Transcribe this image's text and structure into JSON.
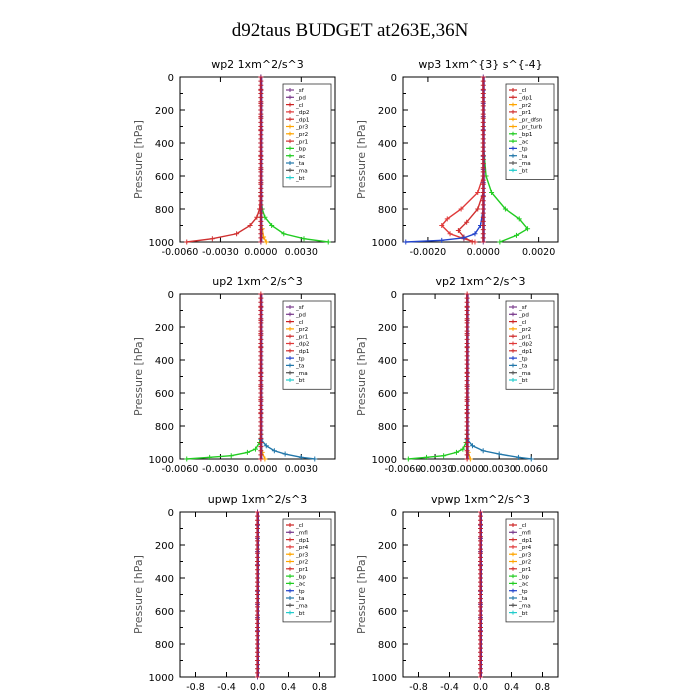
{
  "figure": {
    "title": "d92taus  BUDGET at263E,36N"
  },
  "chart_data": [
    {
      "type": "line",
      "title": "wp2   1xm^2/s^3",
      "ylabel": "Pressure [hPa]",
      "xlim": [
        -0.006,
        0.0055
      ],
      "ylim": [
        1000,
        0
      ],
      "xticks": [
        -0.006,
        -0.003,
        0.0,
        0.003
      ],
      "xtick_labels": [
        "-0.0060",
        "-0.0030",
        "0.0000",
        "0.0030"
      ],
      "yticks": [
        0,
        200,
        400,
        600,
        800,
        1000
      ],
      "legend": [
        "_sf",
        "_pd",
        "_cl",
        "_dp2",
        "_dp1",
        "_pr3",
        "_pr2",
        "_pr1",
        "_bp",
        "_ac",
        "_ta",
        "_ma",
        "_bt"
      ],
      "series": [
        {
          "name": "_pr1",
          "color": "#d03030",
          "marker": "+",
          "x": [
            0,
            -0.0001,
            -0.0003,
            -0.0008,
            -0.0018,
            -0.0036,
            -0.0055
          ],
          "y": [
            700,
            800,
            850,
            900,
            950,
            980,
            1000
          ]
        },
        {
          "name": "_bp",
          "color": "#22cc22",
          "marker": "+",
          "x": [
            0,
            0.0001,
            0.0003,
            0.0008,
            0.0017,
            0.0032,
            0.005
          ],
          "y": [
            700,
            800,
            850,
            900,
            950,
            980,
            1000
          ]
        },
        {
          "name": "_cl",
          "color": "#cc2222",
          "marker": "+",
          "x": [
            0,
            0,
            0,
            0,
            0,
            0,
            0,
            0,
            0,
            0,
            0,
            0,
            0
          ],
          "y": [
            0,
            80,
            160,
            240,
            320,
            400,
            480,
            560,
            640,
            720,
            800,
            900,
            1000
          ]
        },
        {
          "name": "_sf",
          "color": "#7a3b8c",
          "marker": "+",
          "x": [
            0,
            0,
            0,
            0,
            0,
            0
          ],
          "y": [
            0,
            200,
            400,
            600,
            800,
            1000
          ]
        },
        {
          "name": "_pr3",
          "color": "#ffa500",
          "marker": "+",
          "x": [
            0,
            0.0001,
            0.0002,
            0.0004
          ],
          "y": [
            850,
            920,
            970,
            1000
          ]
        }
      ]
    },
    {
      "type": "line",
      "title": "wp3   1xm^{3} s^{-4}",
      "ylabel": "Pressure [hPa]",
      "xlim": [
        -0.0029,
        0.0027
      ],
      "ylim": [
        1000,
        0
      ],
      "xticks": [
        -0.002,
        0.0,
        0.002
      ],
      "xtick_labels": [
        "-0.0020",
        "0.0000",
        "0.0020"
      ],
      "yticks": [
        0,
        200,
        400,
        600,
        800,
        1000
      ],
      "legend": [
        "_cl",
        "_dp1",
        "_pr2",
        "_pr1",
        "_pr_dfsn",
        "_pr_turb",
        "_bp1",
        "_ac",
        "_tp",
        "_ta",
        "_ma",
        "_bt"
      ],
      "series": [
        {
          "name": "_pr1",
          "color": "#e03a3a",
          "marker": "+",
          "x": [
            0,
            -0.0002,
            -0.0008,
            -0.0013,
            -0.0015,
            -0.0012,
            -0.0007,
            -0.0003
          ],
          "y": [
            600,
            700,
            800,
            860,
            900,
            950,
            980,
            1000
          ]
        },
        {
          "name": "_bp1",
          "color": "#22cc22",
          "marker": "+",
          "x": [
            0,
            0.0001,
            0.0003,
            0.0008,
            0.0013,
            0.0016,
            0.0012,
            0.0006
          ],
          "y": [
            400,
            600,
            700,
            800,
            860,
            920,
            960,
            1000
          ]
        },
        {
          "name": "_pr2",
          "color": "#d03030",
          "marker": "+",
          "x": [
            0,
            -0.0002,
            -0.0006,
            -0.0009,
            -0.0007,
            -0.0004
          ],
          "y": [
            700,
            800,
            880,
            930,
            970,
            1000
          ]
        },
        {
          "name": "_tp",
          "color": "#2244cc",
          "marker": "+",
          "x": [
            0,
            -0.0001,
            -0.0003,
            -0.0007,
            -0.0015,
            -0.0028
          ],
          "y": [
            800,
            900,
            950,
            975,
            990,
            1000
          ]
        },
        {
          "name": "_cl",
          "color": "#7a3b8c",
          "marker": "+",
          "x": [
            0,
            0,
            0,
            0,
            0,
            0,
            0,
            0,
            0,
            0,
            0,
            0,
            0
          ],
          "y": [
            0,
            80,
            160,
            240,
            320,
            400,
            480,
            560,
            640,
            720,
            800,
            900,
            1000
          ]
        }
      ]
    },
    {
      "type": "line",
      "title": "up2   1xm^2/s^3",
      "ylabel": "Pressure [hPa]",
      "xlim": [
        -0.006,
        0.0055
      ],
      "ylim": [
        1000,
        0
      ],
      "xticks": [
        -0.006,
        -0.003,
        0.0,
        0.003
      ],
      "xtick_labels": [
        "-0.0060",
        "-0.0030",
        "0.0000",
        "0.0030"
      ],
      "yticks": [
        0,
        200,
        400,
        600,
        800,
        1000
      ],
      "legend": [
        "_sf",
        "_pd",
        "_cl",
        "_pr2",
        "_pr1",
        "_dp2",
        "_dp1",
        "_tp",
        "_ta",
        "_ma",
        "_bt"
      ],
      "series": [
        {
          "name": "_dp1",
          "color": "#22cc22",
          "marker": "+",
          "x": [
            0,
            -0.0001,
            -0.0004,
            -0.001,
            -0.0022,
            -0.0038,
            -0.0055
          ],
          "y": [
            850,
            900,
            940,
            960,
            980,
            990,
            1000
          ]
        },
        {
          "name": "_tp",
          "color": "#2277aa",
          "marker": "+",
          "x": [
            0,
            0.0004,
            0.001,
            0.0018,
            0.003,
            0.004
          ],
          "y": [
            880,
            920,
            950,
            970,
            990,
            1000
          ]
        },
        {
          "name": "_cl",
          "color": "#cc2222",
          "marker": "+",
          "x": [
            0,
            0,
            0,
            0,
            0,
            0,
            0,
            0,
            0,
            0,
            0,
            0,
            0
          ],
          "y": [
            0,
            80,
            160,
            240,
            320,
            400,
            480,
            560,
            640,
            720,
            800,
            900,
            1000
          ]
        },
        {
          "name": "_pr1",
          "color": "#ffa500",
          "marker": "+",
          "x": [
            0,
            0.0001,
            0.0003
          ],
          "y": [
            900,
            960,
            1000
          ]
        }
      ]
    },
    {
      "type": "line",
      "title": "vp2   1xm^2/s^3",
      "ylabel": "Pressure [hPa]",
      "xlim": [
        -0.006,
        0.0085
      ],
      "ylim": [
        1000,
        0
      ],
      "xticks": [
        -0.006,
        -0.003,
        0.0,
        0.003,
        0.006
      ],
      "xtick_labels": [
        "-0.0060",
        "-0.0030",
        "0.0000",
        "0.0030",
        "0.0060"
      ],
      "yticks": [
        0,
        200,
        400,
        600,
        800,
        1000
      ],
      "legend": [
        "_sf",
        "_pd",
        "_cl",
        "_pr2",
        "_pr1",
        "_dp2",
        "_dp1",
        "_tp",
        "_ta",
        "_ma",
        "_bt"
      ],
      "series": [
        {
          "name": "_dp1",
          "color": "#22cc22",
          "marker": "+",
          "x": [
            0,
            -0.0001,
            -0.0004,
            -0.001,
            -0.0022,
            -0.0038,
            -0.0055
          ],
          "y": [
            850,
            900,
            940,
            960,
            980,
            990,
            1000
          ]
        },
        {
          "name": "_tp",
          "color": "#2277aa",
          "marker": "+",
          "x": [
            0,
            0.0005,
            0.0015,
            0.003,
            0.0048,
            0.006
          ],
          "y": [
            880,
            920,
            950,
            970,
            990,
            1000
          ]
        },
        {
          "name": "_cl",
          "color": "#cc2222",
          "marker": "+",
          "x": [
            0,
            0,
            0,
            0,
            0,
            0,
            0,
            0,
            0,
            0,
            0,
            0,
            0
          ],
          "y": [
            0,
            80,
            160,
            240,
            320,
            400,
            480,
            560,
            640,
            720,
            800,
            900,
            1000
          ]
        },
        {
          "name": "_pr1",
          "color": "#ffa500",
          "marker": "+",
          "x": [
            0,
            0.0001,
            0.0003
          ],
          "y": [
            900,
            960,
            1000
          ]
        }
      ]
    },
    {
      "type": "line",
      "title": "upwp   1xm^2/s^3",
      "ylabel": "Pressure [hPa]",
      "xlim": [
        -1.0,
        1.0
      ],
      "ylim": [
        1000,
        0
      ],
      "xticks": [
        -0.8,
        -0.4,
        0.0,
        0.4,
        0.8
      ],
      "xtick_labels": [
        "-0.8",
        "-0.4",
        "0.0",
        "0.4",
        "0.8"
      ],
      "yticks": [
        0,
        200,
        400,
        600,
        800,
        1000
      ],
      "legend": [
        "_cl",
        "_mfl",
        "_dp1",
        "_pr4",
        "_pr3",
        "_pr2",
        "_pr1",
        "_bp",
        "_ac",
        "_tp",
        "_ta",
        "_ma",
        "_bt"
      ],
      "series": [
        {
          "name": "_cl",
          "color": "#7a3b8c",
          "marker": "+",
          "x": [
            0,
            0,
            0,
            0,
            0,
            0,
            0,
            0,
            0,
            0,
            0,
            0,
            0
          ],
          "y": [
            0,
            80,
            160,
            240,
            320,
            400,
            480,
            560,
            640,
            720,
            800,
            900,
            1000
          ]
        }
      ]
    },
    {
      "type": "line",
      "title": "vpwp   1xm^2/s^3",
      "ylabel": "Pressure [hPa]",
      "xlim": [
        -1.0,
        1.0
      ],
      "ylim": [
        1000,
        0
      ],
      "xticks": [
        -0.8,
        -0.4,
        0.0,
        0.4,
        0.8
      ],
      "xtick_labels": [
        "-0.8",
        "-0.4",
        "0.0",
        "0.4",
        "0.8"
      ],
      "yticks": [
        0,
        200,
        400,
        600,
        800,
        1000
      ],
      "legend": [
        "_cl",
        "_mfl",
        "_dp1",
        "_pr4",
        "_pr3",
        "_pr2",
        "_pr1",
        "_bp",
        "_ac",
        "_tp",
        "_ta",
        "_ma",
        "_bt"
      ],
      "series": [
        {
          "name": "_cl",
          "color": "#7a3b8c",
          "marker": "+",
          "x": [
            0,
            0,
            0,
            0,
            0,
            0,
            0,
            0,
            0,
            0,
            0,
            0,
            0
          ],
          "y": [
            0,
            80,
            160,
            240,
            320,
            400,
            480,
            560,
            640,
            720,
            800,
            900,
            1000
          ]
        }
      ]
    }
  ],
  "legend_colors": {
    "_sf": "#7a3b8c",
    "_pd": "#7a3b8c",
    "_cl": "#cc2222",
    "_dp2": "#e03a3a",
    "_dp1": "#d03030",
    "_mfl": "#7a3b8c",
    "_pr4": "#e03a3a",
    "_pr3": "#ffa500",
    "_pr2": "#ffa500",
    "_pr1": "#d03030",
    "_bp": "#22cc22",
    "_bp1": "#22cc22",
    "_ac": "#22cc22",
    "_tp": "#2244cc",
    "_ta": "#2277aa",
    "_ma": "#555555",
    "_bt": "#22cccc",
    "_pr_dfsn": "#ffa500",
    "_pr_turb": "#ffa500"
  }
}
